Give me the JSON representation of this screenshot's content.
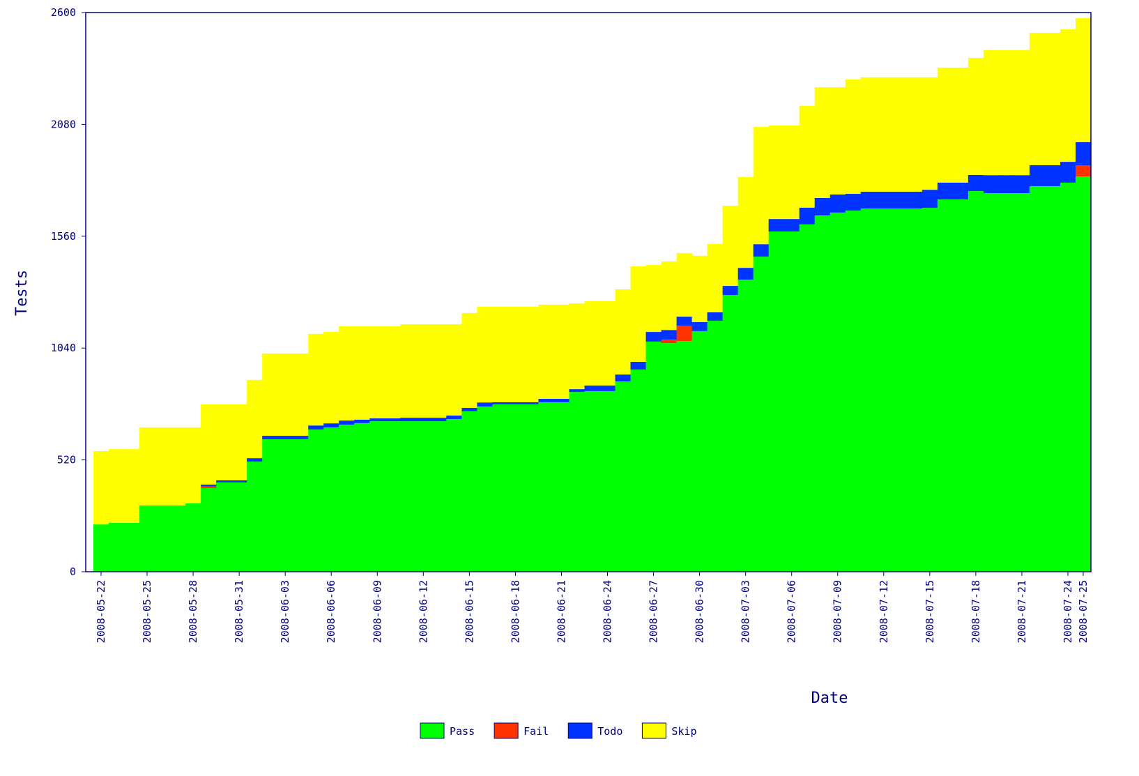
{
  "chart_data": {
    "type": "stacked_step_area",
    "x_label": "Date",
    "y_label": "Tests",
    "categories": [
      "2008-05-22",
      null,
      null,
      "2008-05-25",
      null,
      null,
      "2008-05-28",
      null,
      null,
      "2008-05-31",
      null,
      null,
      "2008-06-03",
      null,
      null,
      "2008-06-06",
      null,
      null,
      "2008-06-09",
      null,
      null,
      "2008-06-12",
      null,
      null,
      "2008-06-15",
      null,
      null,
      "2008-06-18",
      null,
      null,
      "2008-06-21",
      null,
      null,
      "2008-06-24",
      null,
      null,
      "2008-06-27",
      null,
      null,
      "2008-06-30",
      null,
      null,
      "2008-07-03",
      null,
      null,
      "2008-07-06",
      null,
      null,
      "2008-07-09",
      null,
      null,
      "2008-07-12",
      null,
      null,
      "2008-07-15",
      null,
      null,
      "2008-07-18",
      null,
      null,
      "2008-07-21",
      null,
      null,
      "2008-07-24",
      "2008-07-25"
    ],
    "series": [
      {
        "name": "Pass",
        "color": "#00ff00",
        "values": [
          220,
          227,
          227,
          308,
          308,
          308,
          318,
          389,
          415,
          415,
          512,
          616,
          616,
          616,
          661,
          671,
          684,
          691,
          700,
          700,
          700,
          700,
          700,
          710,
          746,
          768,
          778,
          778,
          778,
          788,
          788,
          836,
          840,
          840,
          885,
          940,
          1070,
          1063,
          1073,
          1119,
          1167,
          1287,
          1358,
          1465,
          1582,
          1582,
          1615,
          1657,
          1670,
          1679,
          1689,
          1689,
          1689,
          1689,
          1692,
          1731,
          1731,
          1770,
          1760,
          1760,
          1760,
          1793,
          1793,
          1809,
          1838
        ]
      },
      {
        "name": "Fail",
        "color": "#ff3300",
        "values": [
          0,
          0,
          0,
          0,
          0,
          0,
          0,
          8,
          0,
          0,
          0,
          0,
          0,
          0,
          0,
          0,
          0,
          0,
          0,
          0,
          0,
          0,
          0,
          0,
          0,
          0,
          0,
          0,
          0,
          0,
          0,
          0,
          0,
          0,
          0,
          0,
          0,
          16,
          71,
          0,
          0,
          0,
          0,
          0,
          0,
          0,
          0,
          0,
          0,
          0,
          0,
          0,
          0,
          0,
          0,
          0,
          0,
          0,
          0,
          0,
          0,
          0,
          0,
          0,
          52
        ]
      },
      {
        "name": "Todo",
        "color": "#0033ff",
        "values": [
          0,
          0,
          0,
          0,
          0,
          0,
          0,
          8,
          10,
          10,
          16,
          16,
          16,
          16,
          19,
          19,
          19,
          16,
          13,
          13,
          16,
          16,
          16,
          16,
          16,
          19,
          10,
          10,
          10,
          16,
          16,
          13,
          26,
          26,
          32,
          36,
          45,
          45,
          42,
          42,
          39,
          42,
          55,
          58,
          58,
          58,
          78,
          81,
          84,
          78,
          78,
          78,
          78,
          78,
          84,
          78,
          78,
          75,
          84,
          84,
          84,
          97,
          97,
          97,
          107
        ]
      },
      {
        "name": "Skip",
        "color": "#ffff00",
        "values": [
          341,
          343,
          343,
          363,
          363,
          363,
          353,
          373,
          353,
          353,
          364,
          383,
          383,
          383,
          426,
          425,
          438,
          434,
          428,
          428,
          435,
          435,
          435,
          425,
          441,
          445,
          444,
          444,
          444,
          438,
          438,
          399,
          392,
          392,
          396,
          444,
          311,
          319,
          296,
          308,
          318,
          373,
          422,
          545,
          435,
          435,
          473,
          515,
          499,
          532,
          532,
          532,
          532,
          532,
          523,
          535,
          535,
          544,
          581,
          581,
          581,
          616,
          616,
          616,
          577
        ]
      }
    ],
    "ylim": [
      0,
      2600
    ],
    "yticks": [
      0,
      520,
      1040,
      1560,
      2080,
      2600
    ],
    "axis_color": "#000080"
  }
}
